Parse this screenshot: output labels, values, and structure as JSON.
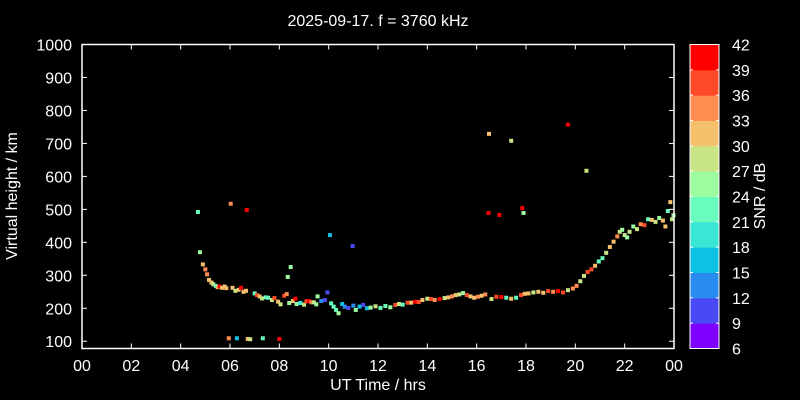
{
  "chart_data": {
    "type": "scatter",
    "title": "2025-09-17. f = 3760 kHz",
    "xlabel": "UT Time / hrs",
    "ylabel": "Virtual height / km",
    "xlim": [
      0,
      24
    ],
    "ylim": [
      78,
      1000
    ],
    "xticks": [
      "00",
      "02",
      "04",
      "06",
      "08",
      "10",
      "12",
      "14",
      "16",
      "18",
      "20",
      "22",
      "00"
    ],
    "yticks": [
      100,
      200,
      300,
      400,
      500,
      600,
      700,
      800,
      900,
      1000
    ],
    "grid": false,
    "colorbar": {
      "label": "SNR / dB",
      "ticks": [
        6,
        9,
        12,
        15,
        18,
        21,
        24,
        27,
        30,
        33,
        36,
        39,
        42
      ],
      "colors": [
        "#7f00ff",
        "#4a4af5",
        "#2a8cf0",
        "#0ec0e4",
        "#3ae6d6",
        "#6afcbc",
        "#9cfca0",
        "#c8e484",
        "#f4c06c",
        "#ff8c50",
        "#ff4a28",
        "#ff0000"
      ]
    },
    "points_columns": [
      "ut_hours",
      "virtual_height_km",
      "snr_db"
    ],
    "points": [
      [
        4.7,
        492,
        22
      ],
      [
        6.03,
        517,
        34
      ],
      [
        6.68,
        498,
        40
      ],
      [
        10.05,
        422,
        17
      ],
      [
        10.97,
        389,
        11
      ],
      [
        8.46,
        325,
        25
      ],
      [
        8.34,
        295,
        26
      ],
      [
        16.48,
        489,
        40
      ],
      [
        16.92,
        483,
        40
      ],
      [
        17.85,
        504,
        40
      ],
      [
        17.9,
        489,
        26
      ],
      [
        16.5,
        729,
        31
      ],
      [
        17.4,
        708,
        29
      ],
      [
        19.7,
        757,
        40
      ],
      [
        20.45,
        617,
        27
      ],
      [
        5.95,
        109,
        34
      ],
      [
        6.28,
        109,
        16
      ],
      [
        6.72,
        107,
        30
      ],
      [
        6.82,
        106,
        28
      ],
      [
        7.33,
        109,
        23
      ],
      [
        8.0,
        107,
        40
      ],
      [
        4.78,
        370,
        25
      ],
      [
        4.9,
        333,
        31
      ],
      [
        5.0,
        318,
        34
      ],
      [
        5.07,
        303,
        35
      ],
      [
        5.15,
        286,
        30
      ],
      [
        5.25,
        278,
        31
      ],
      [
        5.32,
        273,
        28
      ],
      [
        5.42,
        268,
        23
      ],
      [
        5.5,
        264,
        31
      ],
      [
        5.58,
        266,
        40
      ],
      [
        5.68,
        262,
        30
      ],
      [
        5.78,
        266,
        31
      ],
      [
        5.85,
        261,
        31
      ],
      [
        6.1,
        262,
        31
      ],
      [
        6.22,
        253,
        28
      ],
      [
        6.35,
        256,
        31
      ],
      [
        6.45,
        262,
        40
      ],
      [
        6.55,
        250,
        31
      ],
      [
        6.65,
        253,
        30
      ],
      [
        7.0,
        245,
        21
      ],
      [
        7.1,
        240,
        36
      ],
      [
        7.2,
        236,
        32
      ],
      [
        7.3,
        230,
        28
      ],
      [
        7.45,
        233,
        23
      ],
      [
        7.55,
        232,
        23
      ],
      [
        7.7,
        225,
        27
      ],
      [
        7.8,
        231,
        36
      ],
      [
        7.95,
        220,
        30
      ],
      [
        8.05,
        212,
        28
      ],
      [
        8.2,
        238,
        36
      ],
      [
        8.3,
        243,
        34
      ],
      [
        8.4,
        216,
        26
      ],
      [
        8.55,
        222,
        31
      ],
      [
        8.65,
        229,
        40
      ],
      [
        8.7,
        213,
        25
      ],
      [
        8.85,
        216,
        18
      ],
      [
        9.0,
        211,
        27
      ],
      [
        9.1,
        221,
        36
      ],
      [
        9.2,
        222,
        40
      ],
      [
        9.3,
        218,
        34
      ],
      [
        9.4,
        218,
        27
      ],
      [
        9.5,
        212,
        26
      ],
      [
        9.55,
        236,
        24
      ],
      [
        9.7,
        222,
        14
      ],
      [
        9.85,
        225,
        10
      ],
      [
        9.95,
        248,
        11
      ],
      [
        10.1,
        215,
        21
      ],
      [
        10.2,
        205,
        21
      ],
      [
        10.3,
        195,
        22
      ],
      [
        10.4,
        185,
        25
      ],
      [
        10.55,
        213,
        16
      ],
      [
        10.65,
        205,
        13
      ],
      [
        10.8,
        201,
        9
      ],
      [
        11.0,
        208,
        12
      ],
      [
        11.1,
        195,
        25
      ],
      [
        11.25,
        205,
        15
      ],
      [
        11.4,
        210,
        11
      ],
      [
        11.55,
        200,
        16
      ],
      [
        11.7,
        202,
        24
      ],
      [
        11.9,
        206,
        27
      ],
      [
        12.1,
        201,
        23
      ],
      [
        12.3,
        207,
        21
      ],
      [
        12.5,
        203,
        26
      ],
      [
        12.7,
        210,
        36
      ],
      [
        12.85,
        213,
        28
      ],
      [
        13.0,
        211,
        22
      ],
      [
        13.2,
        217,
        36
      ],
      [
        13.35,
        217,
        32
      ],
      [
        13.5,
        220,
        40
      ],
      [
        13.65,
        219,
        36
      ],
      [
        13.8,
        225,
        31
      ],
      [
        14.0,
        229,
        27
      ],
      [
        14.15,
        228,
        36
      ],
      [
        14.3,
        225,
        33
      ],
      [
        14.5,
        228,
        40
      ],
      [
        14.7,
        231,
        28
      ],
      [
        14.85,
        233,
        31
      ],
      [
        15.0,
        236,
        34
      ],
      [
        15.15,
        240,
        31
      ],
      [
        15.3,
        242,
        27
      ],
      [
        15.45,
        246,
        25
      ],
      [
        15.6,
        240,
        36
      ],
      [
        15.75,
        236,
        31
      ],
      [
        15.9,
        232,
        30
      ],
      [
        16.05,
        235,
        33
      ],
      [
        16.2,
        238,
        31
      ],
      [
        16.35,
        242,
        34
      ],
      [
        16.6,
        228,
        29
      ],
      [
        16.8,
        235,
        36
      ],
      [
        17.0,
        234,
        40
      ],
      [
        17.2,
        232,
        23
      ],
      [
        17.4,
        229,
        30
      ],
      [
        17.6,
        232,
        22
      ],
      [
        17.8,
        240,
        36
      ],
      [
        17.95,
        244,
        30
      ],
      [
        18.1,
        245,
        31
      ],
      [
        18.3,
        248,
        28
      ],
      [
        18.5,
        250,
        31
      ],
      [
        18.7,
        247,
        31
      ],
      [
        18.9,
        252,
        36
      ],
      [
        19.1,
        250,
        34
      ],
      [
        19.3,
        252,
        40
      ],
      [
        19.5,
        248,
        36
      ],
      [
        19.7,
        255,
        28
      ],
      [
        19.9,
        260,
        33
      ],
      [
        20.05,
        268,
        33
      ],
      [
        20.2,
        282,
        27
      ],
      [
        20.35,
        298,
        27
      ],
      [
        20.5,
        310,
        36
      ],
      [
        20.65,
        318,
        36
      ],
      [
        20.8,
        329,
        30
      ],
      [
        20.95,
        342,
        22
      ],
      [
        21.1,
        352,
        22
      ],
      [
        21.25,
        368,
        28
      ],
      [
        21.4,
        386,
        30
      ],
      [
        21.55,
        402,
        31
      ],
      [
        21.7,
        418,
        33
      ],
      [
        21.8,
        432,
        27
      ],
      [
        21.9,
        438,
        25
      ],
      [
        22.0,
        422,
        27
      ],
      [
        22.1,
        415,
        25
      ],
      [
        22.2,
        432,
        29
      ],
      [
        22.35,
        448,
        24
      ],
      [
        22.5,
        440,
        27
      ],
      [
        22.65,
        455,
        33
      ],
      [
        22.8,
        452,
        36
      ],
      [
        22.95,
        470,
        21
      ],
      [
        23.1,
        468,
        31
      ],
      [
        23.25,
        462,
        29
      ],
      [
        23.4,
        474,
        26
      ],
      [
        23.55,
        466,
        31
      ],
      [
        23.65,
        448,
        32
      ],
      [
        23.75,
        495,
        22
      ],
      [
        23.85,
        522,
        30
      ],
      [
        23.92,
        470,
        27
      ],
      [
        23.98,
        482,
        24
      ]
    ]
  }
}
